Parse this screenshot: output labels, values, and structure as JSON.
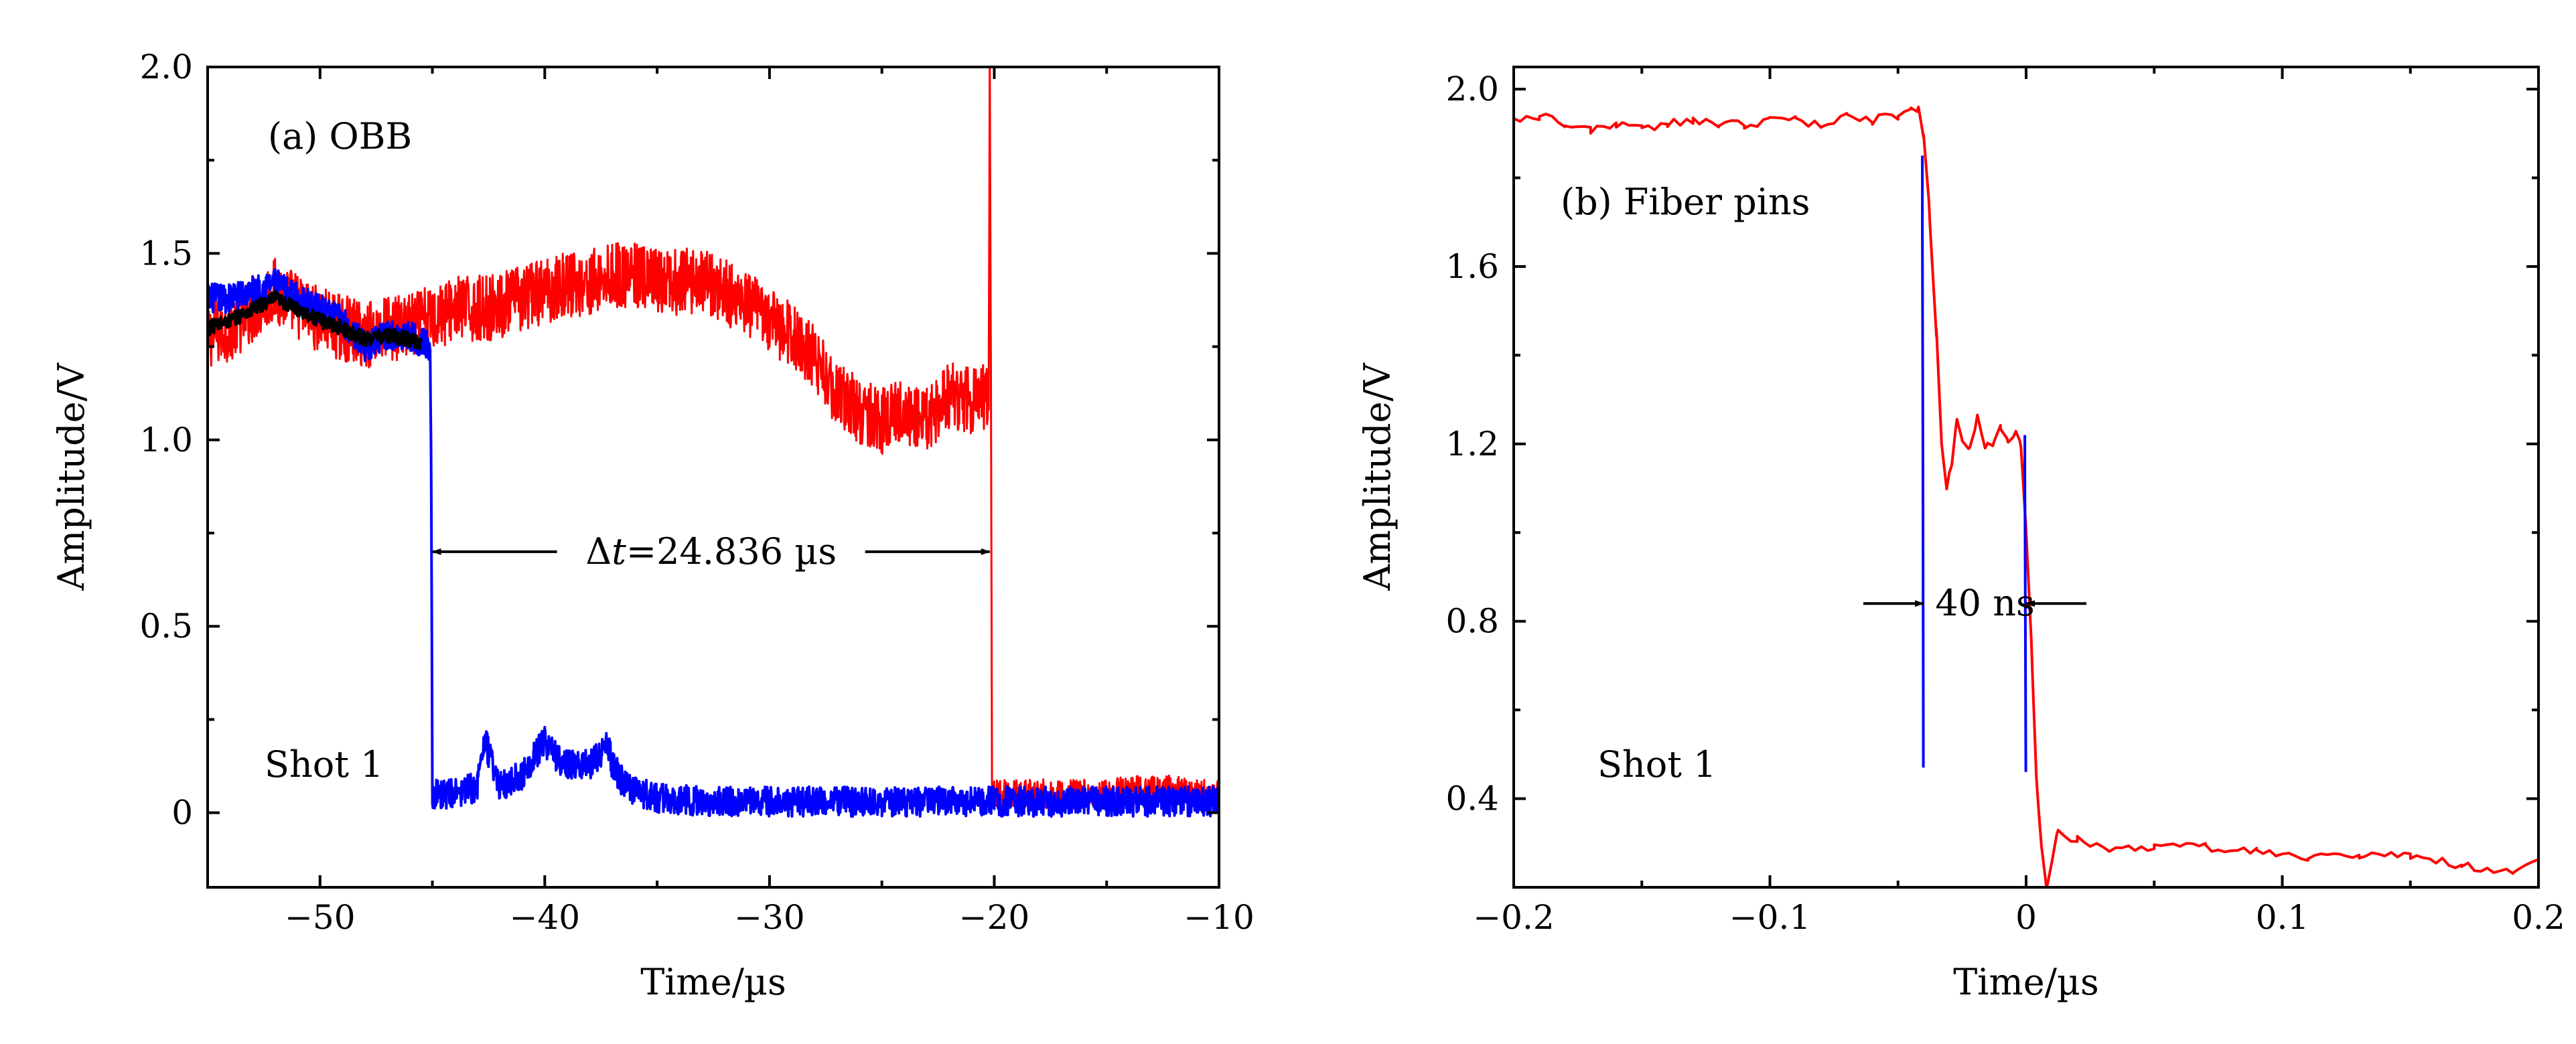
{
  "chart_data": [
    {
      "type": "line",
      "panel_label": "(a) OBB",
      "shot_label": "Shot 1",
      "xlabel": "Time/µs",
      "ylabel": "Amplitude/V",
      "xlim": [
        -55,
        -10
      ],
      "ylim": [
        -0.2,
        2.0
      ],
      "xticks": [
        -50,
        -40,
        -30,
        -20,
        -10
      ],
      "xtick_labels": [
        "−50",
        "−40",
        "−30",
        "−20",
        "−10"
      ],
      "yticks": [
        0,
        0.5,
        1.0,
        1.5,
        2.0
      ],
      "ytick_labels": [
        "0",
        "0.5",
        "1.0",
        "1.5",
        "2.0"
      ],
      "annotation": {
        "prefix": "Δ",
        "var": "t",
        "value": "=24.836 µs",
        "x_start": -45.0,
        "x_end": -20.2,
        "y": 0.7
      },
      "series": [
        {
          "name": "red",
          "color": "#ff0000",
          "style": "dotted",
          "x": [
            -55,
            -54,
            -53,
            -52,
            -51,
            -50,
            -49,
            -48,
            -47,
            -46,
            -45,
            -44,
            -43,
            -42,
            -41,
            -40,
            -39,
            -38,
            -37,
            -36,
            -35,
            -34,
            -33,
            -32,
            -31,
            -30,
            -29,
            -28,
            -27,
            -26,
            -25,
            -24,
            -23,
            -22,
            -21,
            -20.25,
            -20.2,
            -20.15,
            -20.1,
            -19.8,
            -19,
            -18,
            -17,
            -16,
            -15,
            -14,
            -13,
            -12,
            -11,
            -10
          ],
          "y": [
            1.28,
            1.3,
            1.35,
            1.4,
            1.36,
            1.32,
            1.3,
            1.28,
            1.3,
            1.3,
            1.33,
            1.35,
            1.35,
            1.36,
            1.38,
            1.4,
            1.42,
            1.42,
            1.44,
            1.44,
            1.42,
            1.42,
            1.43,
            1.4,
            1.36,
            1.32,
            1.28,
            1.22,
            1.12,
            1.08,
            1.05,
            1.08,
            1.05,
            1.12,
            1.1,
            1.12,
            2.0,
            1.2,
            0.06,
            0.05,
            0.05,
            0.05,
            0.05,
            0.05,
            0.05,
            0.06,
            0.06,
            0.06,
            0.05,
            0.05
          ],
          "noise": 0.09
        },
        {
          "name": "blue",
          "color": "#0000ff",
          "style": "solid",
          "x": [
            -55,
            -54,
            -53,
            -52,
            -51,
            -50,
            -49,
            -48,
            -47,
            -46,
            -45.1,
            -45.05,
            -45.0,
            -44.9,
            -44,
            -43,
            -42.7,
            -42,
            -41,
            -40.5,
            -40,
            -39.5,
            -39,
            -38,
            -37.2,
            -37,
            -36.5,
            -36,
            -35,
            -33,
            -30,
            -25,
            -20,
            -15,
            -10
          ],
          "y": [
            1.38,
            1.38,
            1.4,
            1.42,
            1.38,
            1.35,
            1.32,
            1.25,
            1.28,
            1.28,
            1.25,
            0.9,
            0.05,
            0.05,
            0.05,
            0.07,
            0.2,
            0.07,
            0.1,
            0.15,
            0.19,
            0.15,
            0.13,
            0.13,
            0.18,
            0.13,
            0.08,
            0.06,
            0.04,
            0.03,
            0.03,
            0.03,
            0.03,
            0.03,
            0.03
          ],
          "noise": 0.04
        },
        {
          "name": "black",
          "color": "#000000",
          "style": "solid",
          "x": [
            -55,
            -54,
            -53,
            -52,
            -51,
            -50,
            -49,
            -48,
            -47,
            -46,
            -45.5
          ],
          "y": [
            1.3,
            1.32,
            1.35,
            1.38,
            1.35,
            1.32,
            1.3,
            1.27,
            1.28,
            1.27,
            1.26
          ],
          "noise": 0.02
        }
      ]
    },
    {
      "type": "line",
      "panel_label": "(b) Fiber pins",
      "shot_label": "Shot 1",
      "xlabel": "Time/µs",
      "ylabel": "Amplitude/V",
      "xlim": [
        -0.2,
        0.2
      ],
      "ylim": [
        0.2,
        2.05
      ],
      "xticks": [
        -0.2,
        -0.1,
        0,
        0.1,
        0.2
      ],
      "xtick_labels": [
        "−0.2",
        "−0.1",
        "0",
        "0.1",
        "0.2"
      ],
      "yticks": [
        0.4,
        0.8,
        1.2,
        1.6,
        2.0
      ],
      "ytick_labels": [
        "0.4",
        "0.8",
        "1.2",
        "1.6",
        "2.0"
      ],
      "annotation": {
        "text": "40 ns",
        "x_start": -0.04,
        "x_end": 0.0,
        "y": 0.84
      },
      "series": [
        {
          "name": "red",
          "color": "#ff0000",
          "style": "solid",
          "x": [
            -0.2,
            -0.19,
            -0.18,
            -0.17,
            -0.16,
            -0.15,
            -0.14,
            -0.13,
            -0.12,
            -0.11,
            -0.1,
            -0.09,
            -0.08,
            -0.07,
            -0.06,
            -0.05,
            -0.045,
            -0.042,
            -0.04,
            -0.038,
            -0.035,
            -0.033,
            -0.031,
            -0.029,
            -0.027,
            -0.025,
            -0.022,
            -0.019,
            -0.016,
            -0.013,
            -0.01,
            -0.007,
            -0.004,
            -0.002,
            0,
            0.002,
            0.004,
            0.006,
            0.008,
            0.012,
            0.02,
            0.03,
            0.05,
            0.07,
            0.09,
            0.11,
            0.13,
            0.15,
            0.17,
            0.19,
            0.2
          ],
          "y": [
            1.93,
            1.94,
            1.92,
            1.91,
            1.92,
            1.91,
            1.92,
            1.93,
            1.92,
            1.92,
            1.93,
            1.93,
            1.92,
            1.94,
            1.93,
            1.94,
            1.95,
            1.96,
            1.9,
            1.75,
            1.45,
            1.2,
            1.1,
            1.15,
            1.26,
            1.2,
            1.19,
            1.26,
            1.2,
            1.2,
            1.24,
            1.2,
            1.23,
            1.2,
            1.0,
            0.75,
            0.45,
            0.3,
            0.2,
            0.32,
            0.31,
            0.29,
            0.29,
            0.29,
            0.28,
            0.27,
            0.27,
            0.27,
            0.25,
            0.23,
            0.26
          ],
          "noise": 0.01
        },
        {
          "name": "blue-spike-1",
          "color": "#0000ff",
          "style": "solid",
          "x": [
            -0.0405,
            -0.0405,
            -0.0403,
            -0.0401
          ],
          "y": [
            1.85,
            1.7,
            1.2,
            0.47
          ]
        },
        {
          "name": "blue-spike-2",
          "color": "#0000ff",
          "style": "solid",
          "x": [
            -0.0005,
            -0.0005,
            -0.0003,
            -0.0001
          ],
          "y": [
            1.22,
            1.15,
            0.8,
            0.46
          ]
        }
      ]
    }
  ]
}
